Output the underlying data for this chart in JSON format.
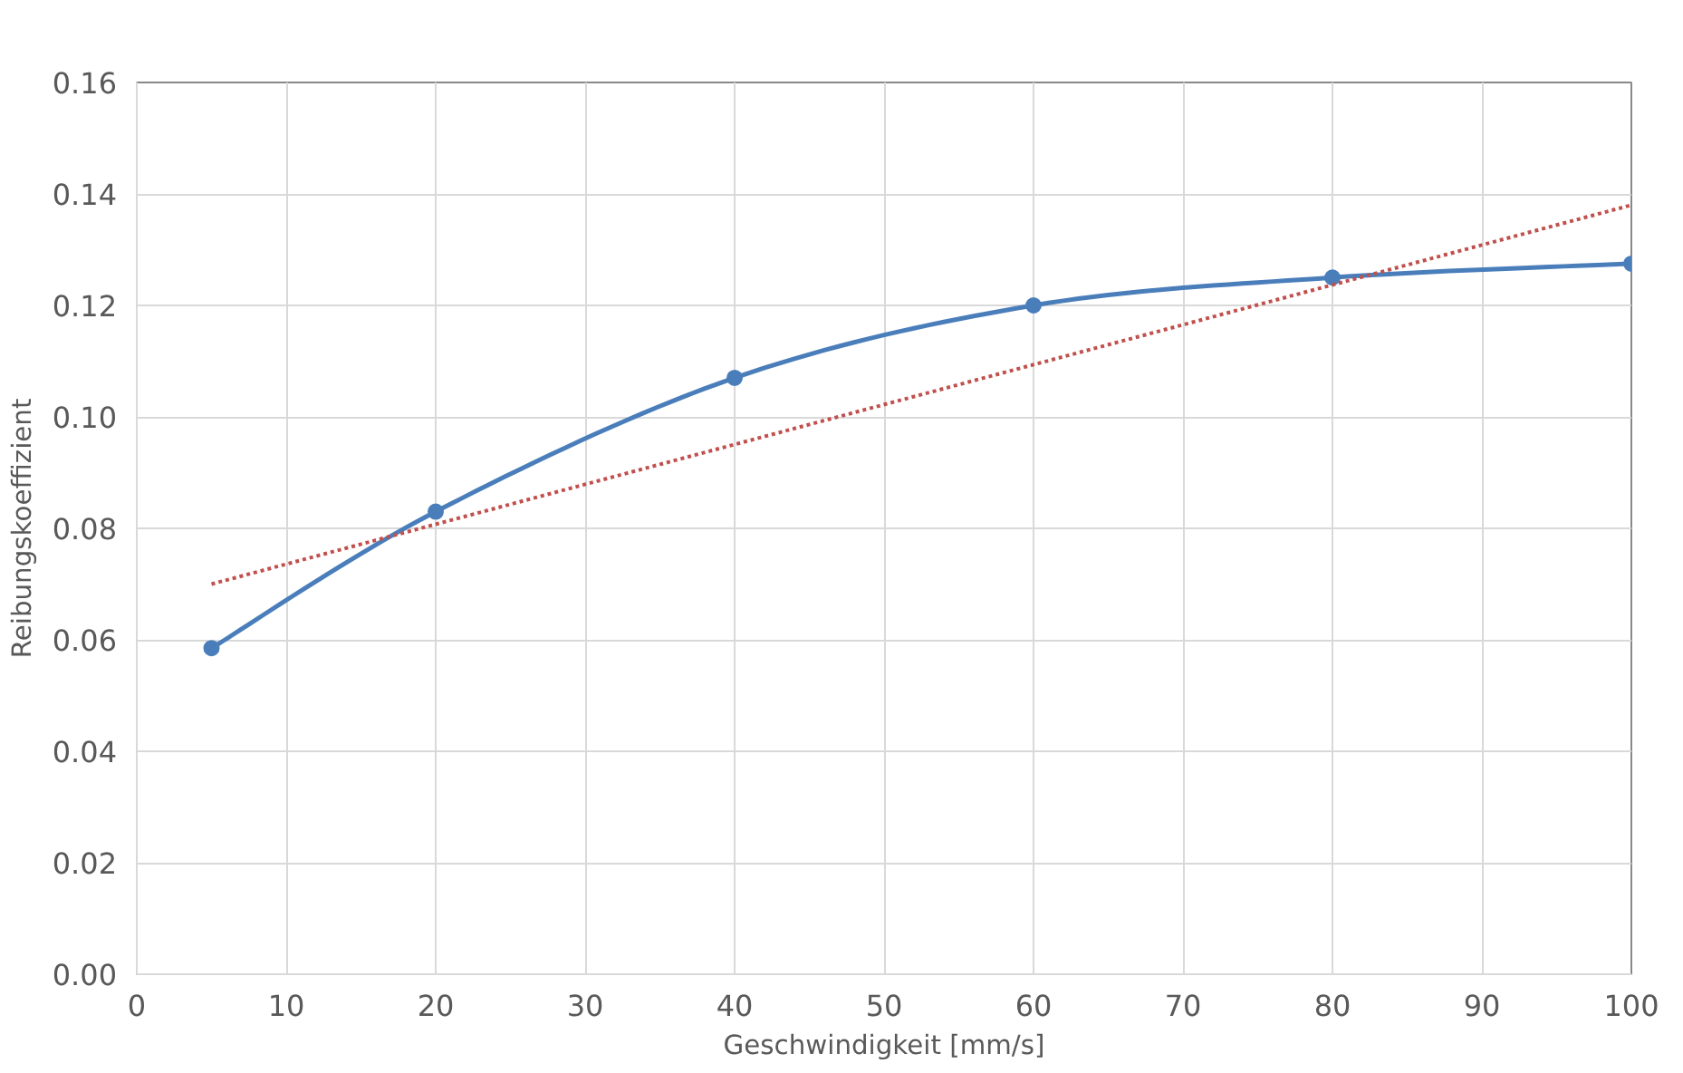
{
  "chart_data": {
    "type": "line",
    "xlabel": "Geschwindigkeit [mm/s]",
    "ylabel": "Reibungskoeffizient",
    "xlim": [
      0,
      100
    ],
    "ylim": [
      0,
      0.16
    ],
    "xticks": [
      0,
      10,
      20,
      30,
      40,
      50,
      60,
      70,
      80,
      90,
      100
    ],
    "yticks": [
      {
        "value": 0,
        "label": "0.00"
      },
      {
        "value": 0.02,
        "label": "0.02"
      },
      {
        "value": 0.04,
        "label": "0.04"
      },
      {
        "value": 0.06,
        "label": "0.06"
      },
      {
        "value": 0.08,
        "label": "0.08"
      },
      {
        "value": 0.1,
        "label": "0.10"
      },
      {
        "value": 0.12,
        "label": "0.12"
      },
      {
        "value": 0.14,
        "label": "0.14"
      },
      {
        "value": 0.16,
        "label": "0.16"
      }
    ],
    "grid": true,
    "series": [
      {
        "color": "#4a7ebb",
        "x": [
          5,
          20,
          40,
          60,
          80,
          100
        ],
        "values": [
          0.0585,
          0.083,
          0.107,
          0.12,
          0.125,
          0.1275
        ],
        "marker": "circle",
        "line_style": "solid"
      },
      {
        "color": "#c0504d",
        "x": [
          5,
          100
        ],
        "values": [
          0.07,
          0.138
        ],
        "marker": "none",
        "line_style": "dotted"
      }
    ]
  }
}
